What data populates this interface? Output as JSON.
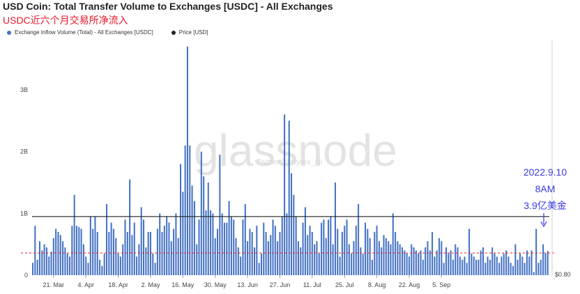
{
  "header": {
    "title": "USD Coin: Total Transfer Volume to Exchanges [USDC] - All Exchanges",
    "subtitle": "USDC近六个月交易所净流入"
  },
  "watermark": {
    "logo": "glassnode",
    "handle": "Twitter@Phyrex_Ni"
  },
  "colors": {
    "bar": "#4472c4",
    "price": "#222222",
    "ref_line": "#e8192c",
    "annotation": "#3a3ae0"
  },
  "chart_data": {
    "type": "bar",
    "legend": [
      {
        "name": "Exchange Inflow Volume (Total) - All Exchanges [USDC]",
        "color": "#4472c4"
      },
      {
        "name": "Price [USD]",
        "color": "#222222"
      }
    ],
    "legend_position": "top-left",
    "y_ticks": [
      "0",
      "1B",
      "2B",
      "3B"
    ],
    "ylim": [
      0,
      3800000000
    ],
    "y_right_tick": "$0.80",
    "x_ticks": [
      "21. Mar",
      "4. Apr",
      "18. Apr",
      "2. May",
      "16. May",
      "30. May",
      "13. Jun",
      "27. Jun",
      "11. Jul",
      "25. Jul",
      "8. Aug",
      "22. Aug",
      "5. Sep"
    ],
    "x_start": "2022-03-12",
    "price_level": 950000000.0,
    "reference_line": 360000000.0,
    "grid": false,
    "values": [
      200000000.0,
      800000000.0,
      250000000.0,
      550000000.0,
      400000000.0,
      500000000.0,
      450000000.0,
      300000000.0,
      380000000.0,
      600000000.0,
      750000000.0,
      700000000.0,
      650000000.0,
      550000000.0,
      450000000.0,
      350000000.0,
      300000000.0,
      800000000.0,
      1300000000.0,
      800000000.0,
      780000000.0,
      750000000.0,
      500000000.0,
      300000000.0,
      200000000.0,
      950000000.0,
      750000000.0,
      950000000.0,
      700000000.0,
      250000000.0,
      150000000.0,
      350000000.0,
      1150000000.0,
      700000000.0,
      850000000.0,
      750000000.0,
      600000000.0,
      350000000.0,
      300000000.0,
      500000000.0,
      900000000.0,
      700000000.0,
      1550000000.0,
      650000000.0,
      850000000.0,
      300000000.0,
      500000000.0,
      1100000000.0,
      900000000.0,
      450000000.0,
      700000000.0,
      700000000.0,
      350000000.0,
      200000000.0,
      750000000.0,
      1000000000.0,
      700000000.0,
      800000000.0,
      950000000.0,
      850000000.0,
      550000000.0,
      750000000.0,
      1000000000.0,
      600000000.0,
      1800000000.0,
      1350000000.0,
      2100000000.0,
      3700000000.0,
      2100000000.0,
      1450000000.0,
      1200000000.0,
      500000000.0,
      900000000.0,
      2000000000.0,
      1600000000.0,
      1050000000.0,
      1500000000.0,
      1050000000.0,
      1000000000.0,
      600000000.0,
      750000000.0,
      1950000000.0,
      1000000000.0,
      850000000.0,
      850000000.0,
      1200000000.0,
      950000000.0,
      900000000.0,
      600000000.0,
      450000000.0,
      300000000.0,
      900000000.0,
      1150000000.0,
      550000000.0,
      750000000.0,
      700000000.0,
      450000000.0,
      800000000.0,
      200000000.0,
      350000000.0,
      850000000.0,
      700000000.0,
      550000000.0,
      650000000.0,
      900000000.0,
      800000000.0,
      550000000.0,
      700000000.0,
      950000000.0,
      2600000000.0,
      1000000000.0,
      2500000000.0,
      1650000000.0,
      1300000000.0,
      950000000.0,
      550000000.0,
      450000000.0,
      850000000.0,
      1100000000.0,
      650000000.0,
      800000000.0,
      700000000.0,
      500000000.0,
      550000000.0,
      350000000.0,
      850000000.0,
      900000000.0,
      600000000.0,
      900000000.0,
      950000000.0,
      500000000.0,
      1500000000.0,
      750000000.0,
      300000000.0,
      700000000.0,
      800000000.0,
      900000000.0,
      500000000.0,
      350000000.0,
      550000000.0,
      800000000.0,
      1150000000.0,
      450000000.0,
      350000000.0,
      850000000.0,
      750000000.0,
      600000000.0,
      250000000.0,
      700000000.0,
      800000000.0,
      550000000.0,
      450000000.0,
      650000000.0,
      600000000.0,
      550000000.0,
      500000000.0,
      1000000000.0,
      700000000.0,
      550000000.0,
      500000000.0,
      450000000.0,
      400000000.0,
      350000000.0,
      300000000.0,
      500000000.0,
      450000000.0,
      400000000.0,
      350000000.0,
      400000000.0,
      250000000.0,
      450000000.0,
      550000000.0,
      400000000.0,
      700000000.0,
      300000000.0,
      400000000.0,
      600000000.0,
      550000000.0,
      200000000.0,
      450000000.0,
      350000000.0,
      400000000.0,
      250000000.0,
      500000000.0,
      450000000.0,
      300000000.0,
      250000000.0,
      300000000.0,
      200000000.0,
      750000000.0,
      350000000.0,
      300000000.0,
      250000000.0,
      250000000.0,
      400000000.0,
      450000000.0,
      200000000.0,
      300000000.0,
      250000000.0,
      450000000.0,
      350000000.0,
      300000000.0,
      200000000.0,
      300000000.0,
      350000000.0,
      400000000.0,
      300000000.0,
      200000000.0,
      150000000.0,
      500000000.0,
      250000000.0,
      350000000.0,
      300000000.0,
      200000000.0,
      400000000.0,
      300000000.0,
      400000000.0,
      50000000.0,
      750000000.0,
      200000000.0,
      250000000.0,
      500000000.0,
      350000000.0,
      390000000.0
    ],
    "annotation": {
      "lines": [
        "2022.9.10",
        "8AM",
        "3.9亿美金"
      ]
    }
  }
}
